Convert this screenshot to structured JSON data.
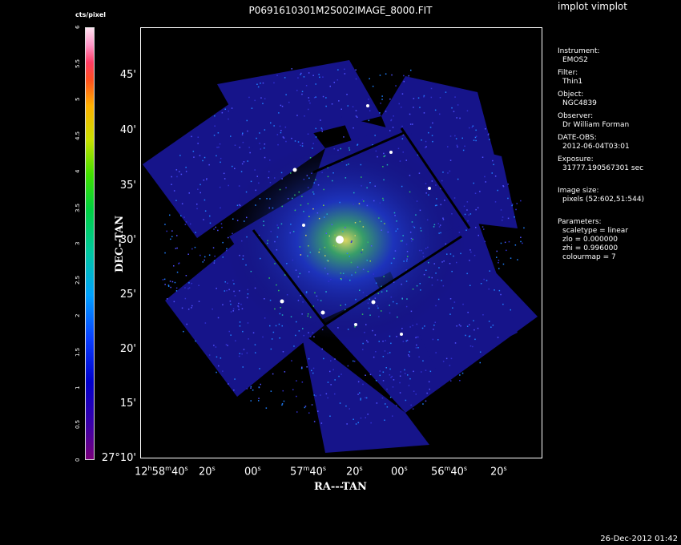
{
  "window": {
    "app_title": "implot vimplot",
    "plot_title": "P0691610301M2S002IMAGE_8000.FIT",
    "footer_timestamp": "26-Dec-2012 01:42"
  },
  "colorbar": {
    "unit": "cts/pixel",
    "ticks": [
      "0",
      "0.5",
      "1",
      "1.5",
      "2",
      "2.5",
      "3",
      "3.5",
      "4",
      "4.5",
      "5",
      "5.5",
      "6"
    ]
  },
  "axes": {
    "xlabel": "RA---TAN",
    "ylabel": "DEC--TAN",
    "y_ticks": [
      "45'",
      "40'",
      "35'",
      "30'",
      "25'",
      "20'",
      "15'"
    ],
    "y_origin": "27°10'",
    "x_ticks": [
      {
        "h": "12",
        "m": "58",
        "s": "40"
      },
      {
        "s": "20"
      },
      {
        "s": "00"
      },
      {
        "m": "57",
        "s": "40"
      },
      {
        "s": "20"
      },
      {
        "s": "00"
      },
      {
        "m": "56",
        "s": "40"
      },
      {
        "s": "20"
      }
    ]
  },
  "info": {
    "instrument_label": "Instrument:",
    "instrument": "EMOS2",
    "filter_label": "Filter:",
    "filter": "Thin1",
    "object_label": "Object:",
    "object": "NGC4839",
    "observer_label": "Observer:",
    "observer": "Dr William Forman",
    "date_label": "DATE-OBS:",
    "date": "2012-06-04T03:01",
    "exposure_label": "Exposure:",
    "exposure": "31777.190567301 sec",
    "size_label": "Image size:",
    "size": "pixels (52:602,51:544)",
    "params_label": "Parameters:",
    "scaletype": "scaletype = linear",
    "zlo": "zlo = 0.000000",
    "zhi": "zhi = 0.996000",
    "colourmap": "colourmap =  7"
  }
}
